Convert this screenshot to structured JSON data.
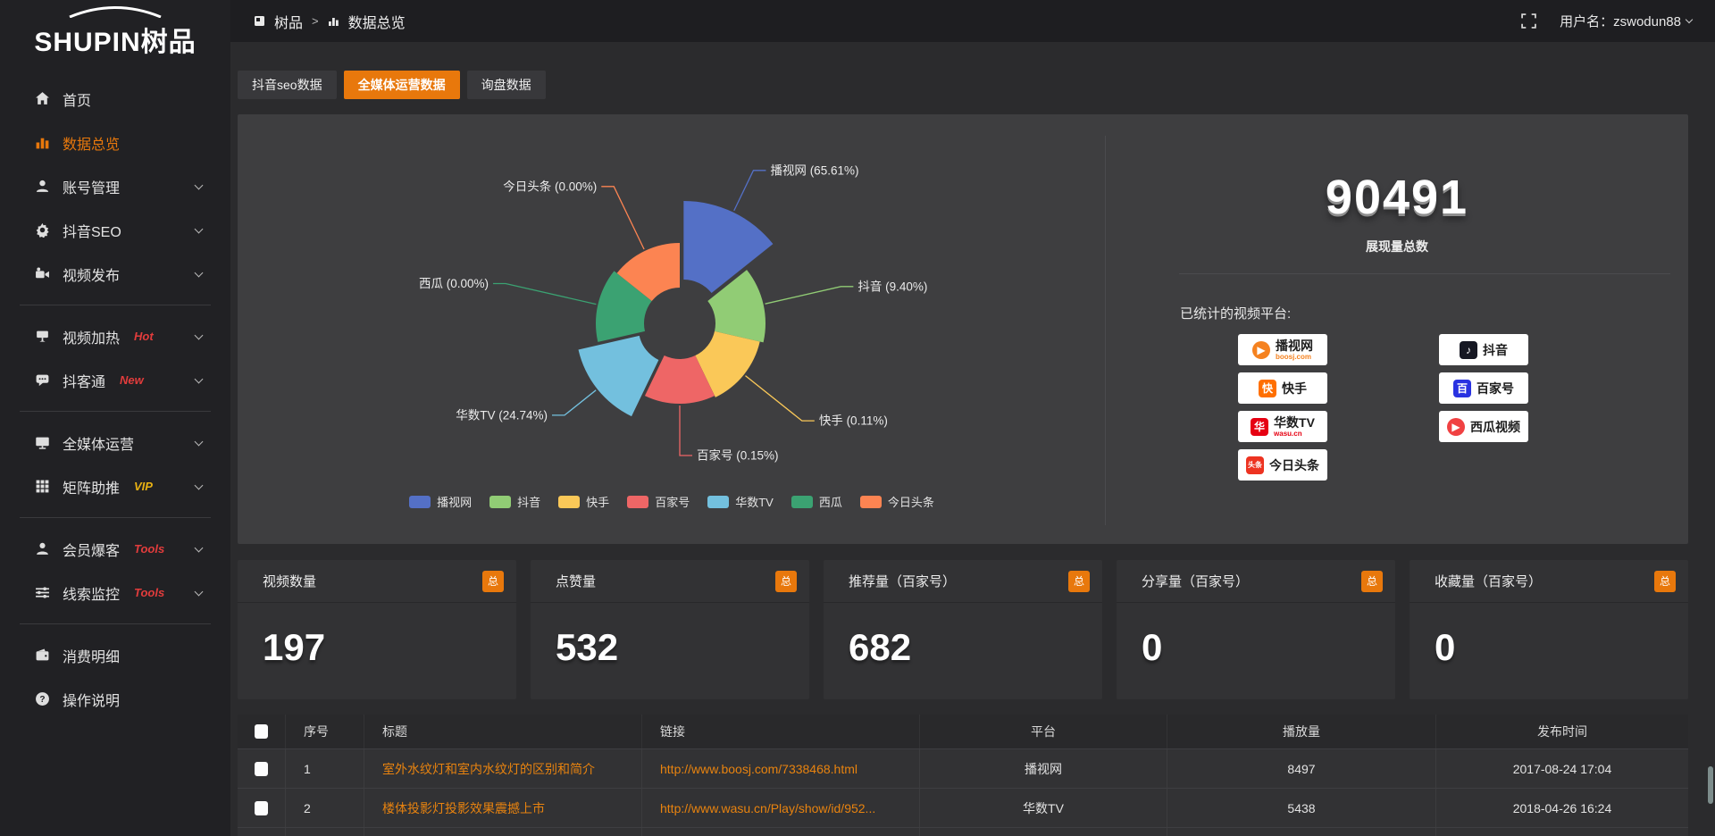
{
  "colors": {
    "accent": "#e8780c",
    "tag_red": "#e23c3c",
    "tag_gold": "#e9b213",
    "panel_bg": "#3e3e40"
  },
  "brand": {
    "logo_text": "SHUPIN树品"
  },
  "topbar": {
    "breadcrumb": [
      {
        "label": "树品"
      },
      {
        "label": "数据总览"
      }
    ],
    "separator": ">",
    "username": "用户名：zswodun88"
  },
  "sidebar": {
    "items": [
      {
        "label": "首页",
        "icon": "home-icon"
      },
      {
        "label": "数据总览",
        "icon": "chart-icon",
        "active": true
      },
      {
        "label": "账号管理",
        "icon": "user-icon",
        "chevron": true
      },
      {
        "label": "抖音SEO",
        "icon": "gear-icon",
        "chevron": true
      },
      {
        "label": "视频发布",
        "icon": "video-upload-icon",
        "chevron": true
      },
      {
        "label": "视频加热",
        "icon": "heat-icon",
        "tag": "Hot",
        "tag_color": "#e23c3c",
        "chevron": true
      },
      {
        "label": "抖客通",
        "icon": "chat-icon",
        "tag": "New",
        "tag_color": "#e23c3c",
        "chevron": true
      },
      {
        "label": "全媒体运营",
        "icon": "monitor-icon",
        "chevron": true
      },
      {
        "label": "矩阵助推",
        "icon": "grid-icon",
        "tag": "VIP",
        "tag_color": "#e9b213",
        "chevron": true
      },
      {
        "label": "会员爆客",
        "icon": "member-icon",
        "tag": "Tools",
        "tag_color": "#e23c3c",
        "chevron": true
      },
      {
        "label": "线索监控",
        "icon": "sliders-icon",
        "tag": "Tools",
        "tag_color": "#e23c3c",
        "chevron": true
      },
      {
        "label": "消费明细",
        "icon": "wallet-icon"
      },
      {
        "label": "操作说明",
        "icon": "help-icon"
      }
    ]
  },
  "tabs": [
    {
      "label": "抖音seo数据",
      "active": false
    },
    {
      "label": "全媒体运营数据",
      "active": true
    },
    {
      "label": "询盘数据",
      "active": false
    }
  ],
  "chart_data": {
    "type": "pie",
    "variant": "nightingale-rose",
    "items": [
      {
        "name": "播视网",
        "value_pct": "65.61",
        "color": "#5470c6"
      },
      {
        "name": "抖音",
        "value_pct": "9.40",
        "color": "#91cc75"
      },
      {
        "name": "快手",
        "value_pct": "0.11",
        "color": "#fac858"
      },
      {
        "name": "百家号",
        "value_pct": "0.15",
        "color": "#ee6666"
      },
      {
        "name": "华数TV",
        "value_pct": "24.74",
        "color": "#73c0de"
      },
      {
        "name": "西瓜",
        "value_pct": "0.00",
        "color": "#3ba272"
      },
      {
        "name": "今日头条",
        "value_pct": "0.00",
        "color": "#fc8452"
      }
    ],
    "label_format": "{name} ({pct}%)",
    "legend_position": "bottom",
    "layout": {
      "equal_angles": true,
      "start_angle": 0,
      "inner_radius": 40,
      "outer_radii": [
        128,
        96,
        92,
        90,
        110,
        94,
        90
      ],
      "offsets": [
        10,
        0,
        0,
        0,
        8,
        0,
        0
      ],
      "label_radii": [
        190,
        185,
        175,
        148,
        165,
        200,
        170
      ]
    }
  },
  "overview": {
    "total_value": "90491",
    "total_label": "展现量总数",
    "platforms_title": "已统计的视频平台:",
    "badges": [
      {
        "name": "播视网",
        "sub": "boosj.com",
        "sub_color": "#f58220",
        "glyph": "▶",
        "glyph_bg": "#f58220",
        "glyph_shape": "circle"
      },
      {
        "name": "抖音",
        "glyph": "♪",
        "glyph_bg": "#161823",
        "glyph_shape": "square"
      },
      {
        "name": "快手",
        "glyph": "快",
        "glyph_bg": "#ff6f00",
        "glyph_shape": "square"
      },
      {
        "name": "百家号",
        "glyph": "百",
        "glyph_bg": "#2932e1",
        "glyph_shape": "square"
      },
      {
        "name": "华数TV",
        "sub": "wasu.cn",
        "sub_color": "#e60012",
        "glyph": "华",
        "glyph_bg": "#e60012",
        "glyph_shape": "square"
      },
      {
        "name": "西瓜视频",
        "glyph": "▶",
        "glyph_bg": "#f04142",
        "glyph_shape": "circle"
      },
      {
        "name": "今日头条",
        "glyph": "头条",
        "glyph_bg": "#ed3321",
        "glyph_shape": "square"
      }
    ]
  },
  "stat_cards": [
    {
      "title": "视频数量",
      "badge": "总",
      "value": "197"
    },
    {
      "title": "点赞量",
      "badge": "总",
      "value": "532"
    },
    {
      "title": "推荐量（百家号）",
      "badge": "总",
      "value": "682"
    },
    {
      "title": "分享量（百家号）",
      "badge": "总",
      "value": "0"
    },
    {
      "title": "收藏量（百家号）",
      "badge": "总",
      "value": "0"
    }
  ],
  "table": {
    "headers": [
      "序号",
      "标题",
      "链接",
      "平台",
      "播放量",
      "发布时间"
    ],
    "rows": [
      {
        "num": "1",
        "title": "室外水纹灯和室内水纹灯的区别和简介",
        "link": "http://www.boosj.com/7338468.html",
        "platform": "播视网",
        "views": "8497",
        "time": "2017-08-24 17:04"
      },
      {
        "num": "2",
        "title": "楼体投影灯投影效果震撼上市",
        "link": "http://www.wasu.cn/Play/show/id/952...",
        "platform": "华数TV",
        "views": "5438",
        "time": "2018-04-26 16:24"
      }
    ]
  }
}
